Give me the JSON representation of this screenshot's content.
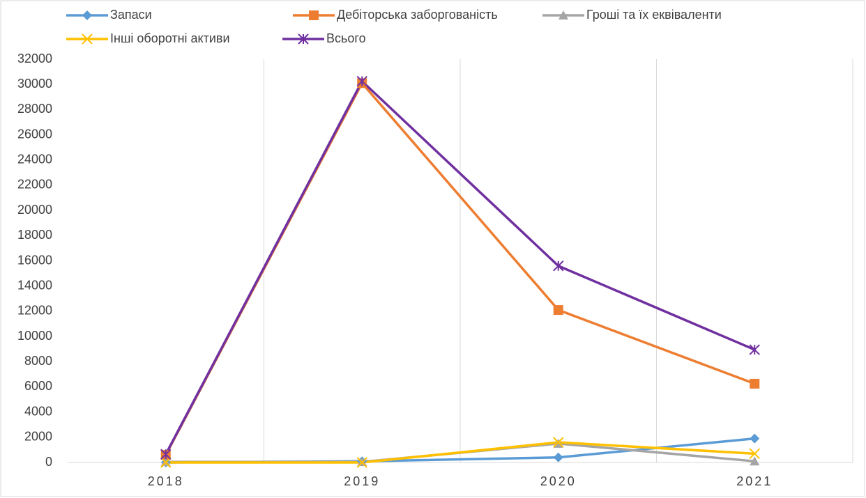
{
  "chart_data": {
    "type": "line",
    "categories": [
      "2018",
      "2019",
      "2020",
      "2021"
    ],
    "series": [
      {
        "name": "Запаси",
        "color": "#5b9bd5",
        "marker": "diamond",
        "values": [
          0,
          100,
          400,
          1900
        ]
      },
      {
        "name": "Дебіторська заборгованість",
        "color": "#ed7d31",
        "marker": "square",
        "values": [
          600,
          30100,
          12100,
          6250
        ]
      },
      {
        "name": "Гроші та їх еквіваленти",
        "color": "#a5a5a5",
        "marker": "triangle",
        "values": [
          50,
          50,
          1500,
          100
        ]
      },
      {
        "name": "Інші оборотні активи",
        "color": "#ffc000",
        "marker": "x",
        "values": [
          0,
          0,
          1600,
          700
        ]
      },
      {
        "name": "Всього",
        "color": "#7030a0",
        "marker": "star",
        "values": [
          650,
          30250,
          15600,
          8950
        ]
      }
    ],
    "ylim": [
      0,
      32000
    ],
    "yticks": [
      0,
      2000,
      4000,
      6000,
      8000,
      10000,
      12000,
      14000,
      16000,
      18000,
      20000,
      22000,
      24000,
      26000,
      28000,
      30000,
      32000
    ],
    "grid": "x",
    "legend": "top"
  }
}
